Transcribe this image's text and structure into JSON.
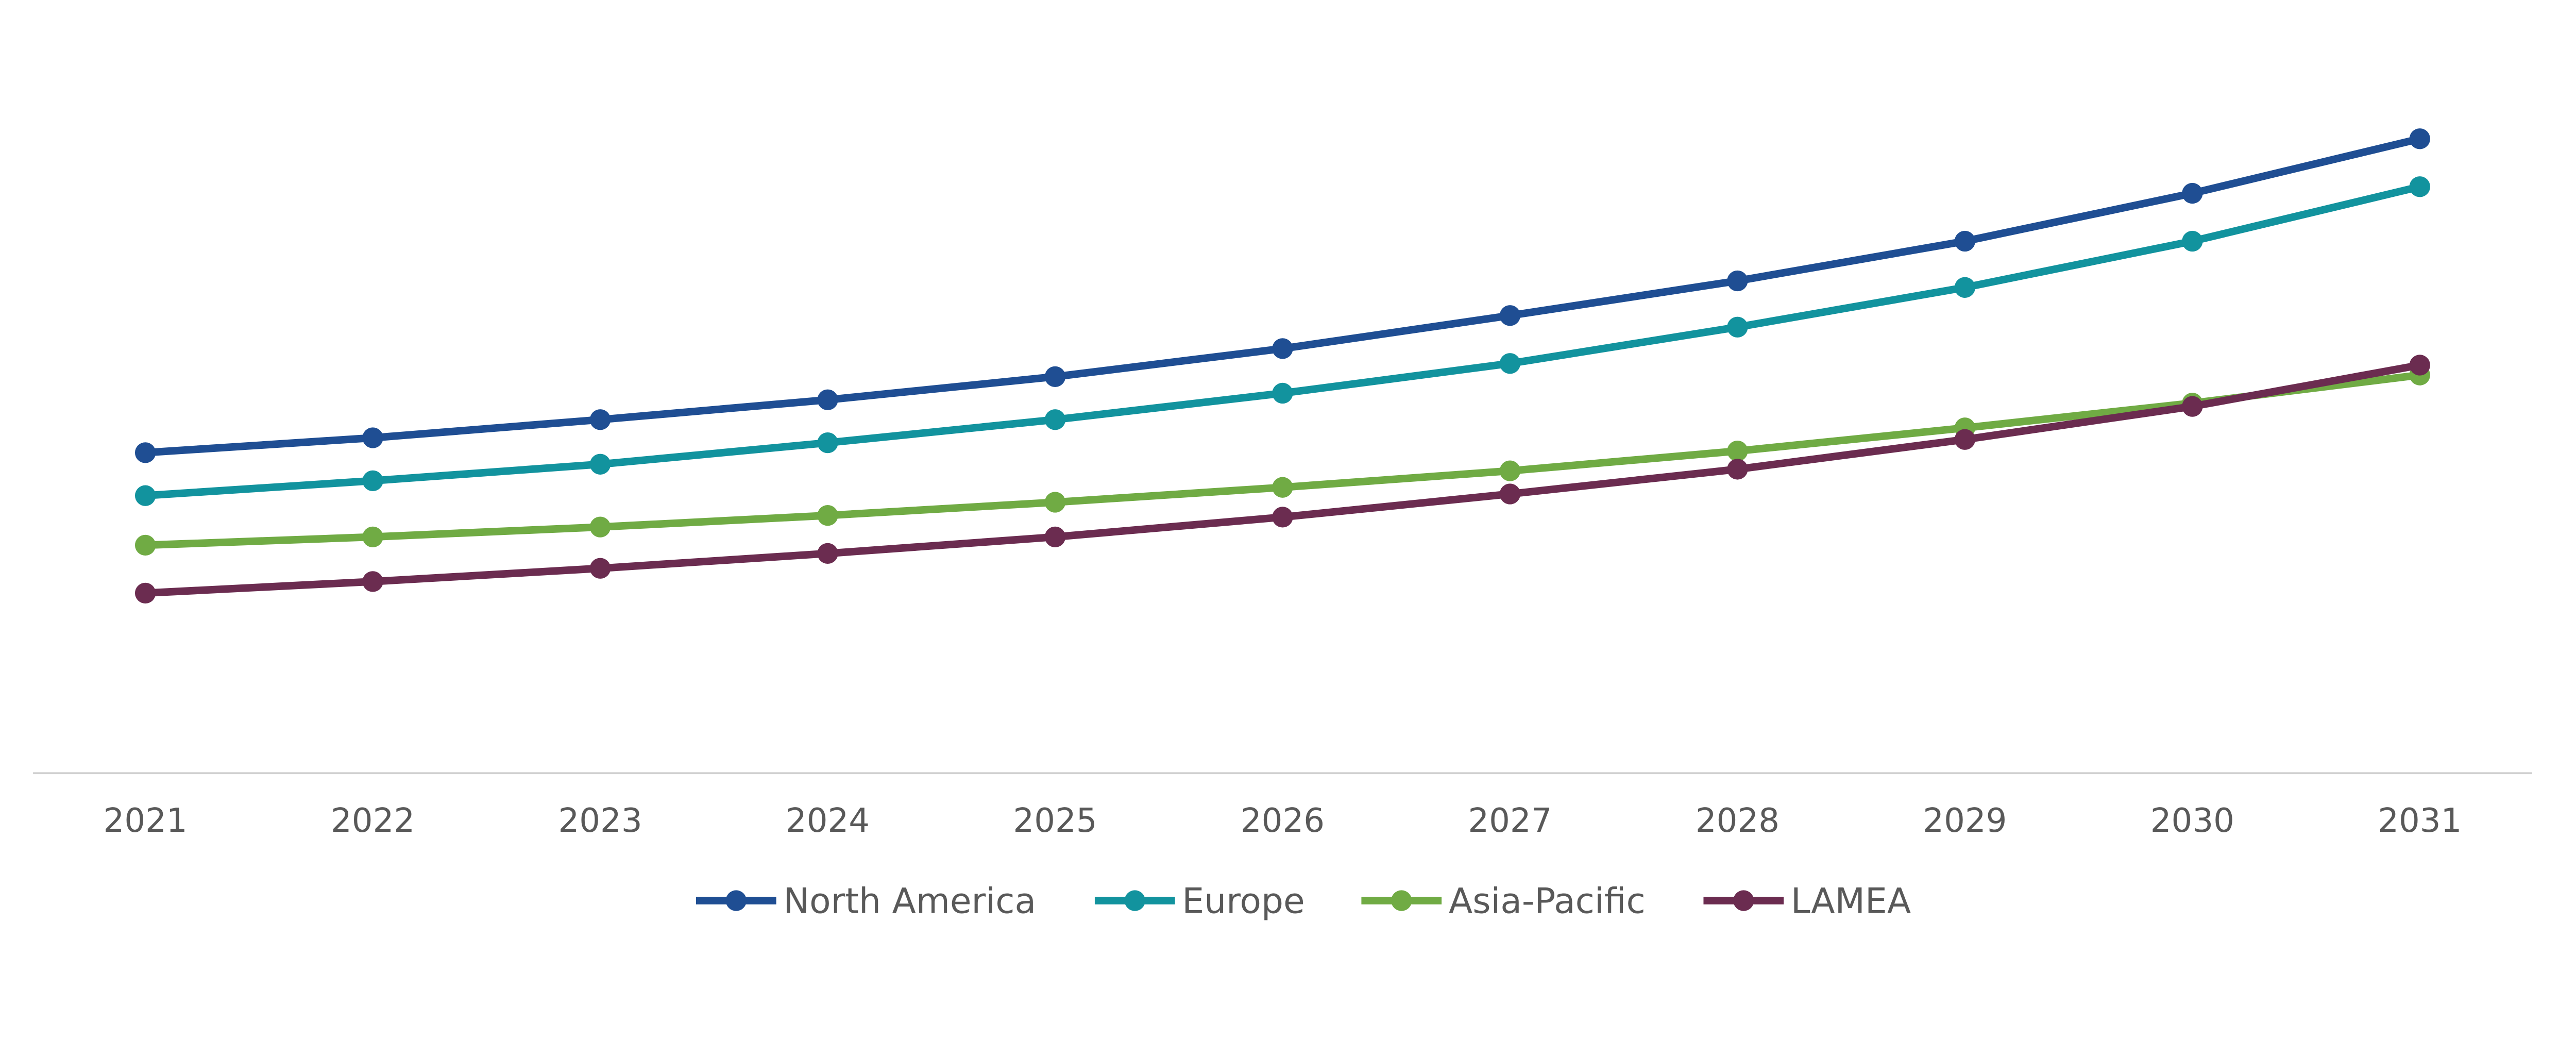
{
  "chart_data": {
    "type": "line",
    "title": "",
    "xlabel": "",
    "ylabel": "",
    "y_axis_shown": false,
    "grid": false,
    "legend_position": "bottom",
    "ylim": [
      0,
      450
    ],
    "categories": [
      "2021",
      "2022",
      "2023",
      "2024",
      "2025",
      "2026",
      "2027",
      "2028",
      "2029",
      "2030",
      "2031"
    ],
    "series": [
      {
        "name": "North America",
        "color": "#1F4E93",
        "values": [
          194,
          203,
          214,
          226,
          240,
          257,
          277,
          298,
          322,
          351,
          384
        ]
      },
      {
        "name": "Europe",
        "color": "#12939E",
        "values": [
          168,
          177,
          187,
          200,
          214,
          230,
          248,
          270,
          294,
          322,
          355
        ]
      },
      {
        "name": "Asia-Pacific",
        "color": "#70AB44",
        "values": [
          138,
          143,
          149,
          156,
          164,
          173,
          183,
          195,
          209,
          224,
          241
        ]
      },
      {
        "name": "LAMEA",
        "color": "#6B2C50",
        "values": [
          109,
          116,
          124,
          133,
          143,
          155,
          169,
          184,
          202,
          222,
          247
        ]
      }
    ]
  }
}
